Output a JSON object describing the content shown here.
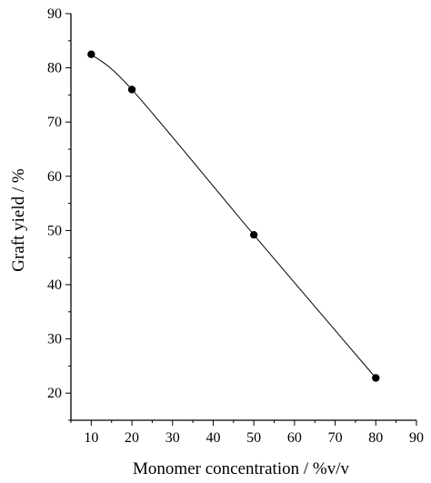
{
  "chart_data": {
    "type": "scatter",
    "xlabel": "Monomer concentration / %v/v",
    "ylabel": "Graft yield / %",
    "xlim": [
      5,
      90
    ],
    "ylim": [
      15,
      90
    ],
    "x_ticks": [
      10,
      20,
      30,
      40,
      50,
      60,
      70,
      80,
      90
    ],
    "y_ticks": [
      20,
      30,
      40,
      50,
      60,
      70,
      80,
      90
    ],
    "x_tick_labels": [
      "10",
      "20",
      "30",
      "40",
      "50",
      "60",
      "70",
      "80",
      "90"
    ],
    "y_tick_labels": [
      "20",
      "30",
      "40",
      "50",
      "60",
      "70",
      "80",
      "90"
    ],
    "grid": false,
    "series": [
      {
        "x": [
          10,
          20,
          50,
          80
        ],
        "y": [
          82.5,
          76.0,
          49.2,
          22.8
        ],
        "marker": "filled-circle",
        "line": "smooth-fit",
        "color": "#000000"
      }
    ]
  }
}
